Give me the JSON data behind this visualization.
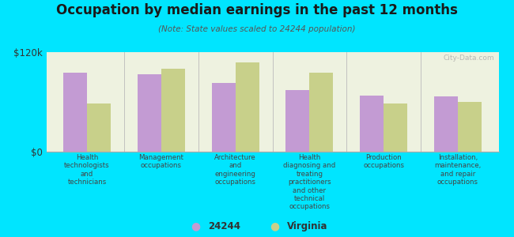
{
  "title": "Occupation by median earnings in the past 12 months",
  "subtitle": "(Note: State values scaled to 24244 population)",
  "background_outer": "#00e5ff",
  "background_inner": "#eef2e0",
  "categories": [
    "Health\ntechnologists\nand\ntechnicians",
    "Management\noccupations",
    "Architecture\nand\nengineering\noccupations",
    "Health\ndiagnosing and\ntreating\npractitioners\nand other\ntechnical\noccupations",
    "Production\noccupations",
    "Installation,\nmaintenance,\nand repair\noccupations"
  ],
  "values_24244": [
    95000,
    93000,
    83000,
    74000,
    68000,
    67000
  ],
  "values_virginia": [
    58000,
    100000,
    108000,
    95000,
    58000,
    60000
  ],
  "color_24244": "#c39bd3",
  "color_virginia": "#c8d08a",
  "ylim": [
    0,
    120000
  ],
  "ytick_labels": [
    "$0",
    "$120k"
  ],
  "legend_labels": [
    "24244",
    "Virginia"
  ],
  "watermark": "City-Data.com"
}
